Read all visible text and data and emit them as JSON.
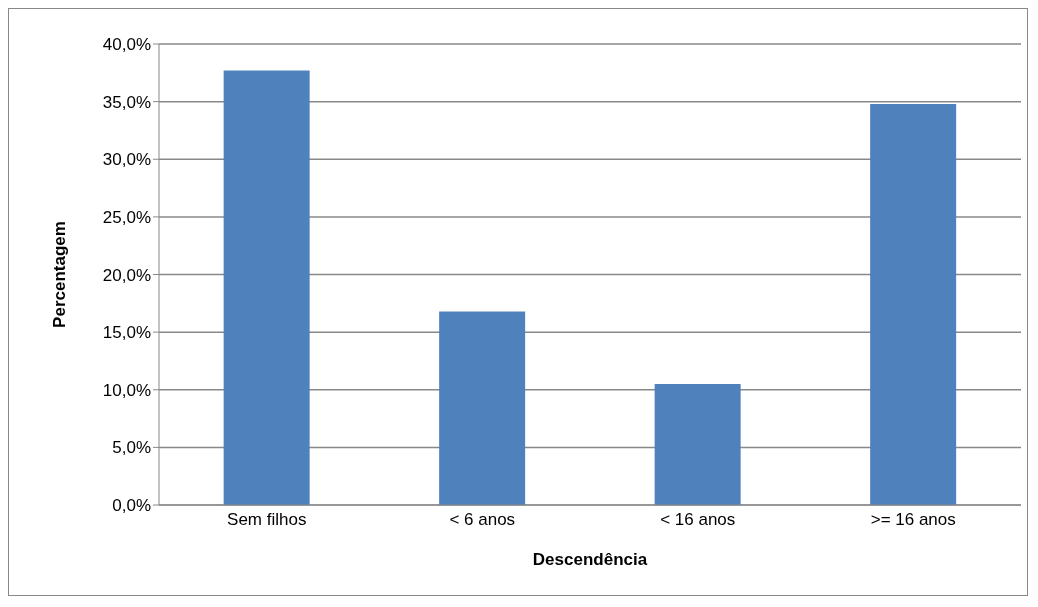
{
  "chart_data": {
    "type": "bar",
    "xlabel": "Descendência",
    "ylabel": "Percentagem",
    "categories": [
      "Sem filhos",
      "< 6 anos",
      "< 16 anos",
      ">= 16  anos"
    ],
    "values": [
      37.7,
      16.8,
      10.5,
      34.8
    ],
    "color": "#4f81bd",
    "ylim": [
      0,
      40
    ],
    "yticks": [
      {
        "value": 0,
        "label": "0,0%"
      },
      {
        "value": 5,
        "label": "5,0%"
      },
      {
        "value": 10,
        "label": "10,0%"
      },
      {
        "value": 15,
        "label": "15,0%"
      },
      {
        "value": 20,
        "label": "20,0%"
      },
      {
        "value": 25,
        "label": "25,0%"
      },
      {
        "value": 30,
        "label": "30,0%"
      },
      {
        "value": 35,
        "label": "35,0%"
      },
      {
        "value": 40,
        "label": "40,0%"
      }
    ],
    "grid": "y",
    "legend": false
  }
}
